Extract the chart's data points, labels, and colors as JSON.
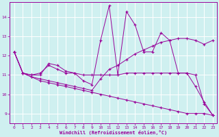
{
  "xlabel": "Windchill (Refroidissement éolien,°C)",
  "xlim": [
    -0.5,
    23.5
  ],
  "ylim": [
    8.5,
    14.8
  ],
  "yticks": [
    9,
    10,
    11,
    12,
    13,
    14
  ],
  "xticks": [
    0,
    1,
    2,
    3,
    4,
    5,
    6,
    7,
    8,
    9,
    10,
    11,
    12,
    13,
    14,
    15,
    16,
    17,
    18,
    19,
    20,
    21,
    22,
    23
  ],
  "bg_color": "#cff0f0",
  "line_color": "#990099",
  "grid_color": "#ffffff",
  "series": [
    [
      12.2,
      11.1,
      11.0,
      11.0,
      11.6,
      11.5,
      11.2,
      11.1,
      10.7,
      10.5,
      12.8,
      14.6,
      11.0,
      14.3,
      13.6,
      12.2,
      12.2,
      13.2,
      12.8,
      11.1,
      11.1,
      10.4,
      9.6,
      8.9
    ],
    [
      12.2,
      11.1,
      10.9,
      10.8,
      10.7,
      10.6,
      10.5,
      10.4,
      10.3,
      10.2,
      10.8,
      11.3,
      11.5,
      11.8,
      12.1,
      12.3,
      12.5,
      12.7,
      12.8,
      12.9,
      12.9,
      12.8,
      12.6,
      12.8
    ],
    [
      12.2,
      11.1,
      11.0,
      11.1,
      11.5,
      11.3,
      11.1,
      11.1,
      11.0,
      11.0,
      11.0,
      11.0,
      11.0,
      11.1,
      11.1,
      11.1,
      11.1,
      11.1,
      11.1,
      11.1,
      11.1,
      11.0,
      9.5,
      8.9
    ],
    [
      12.2,
      11.1,
      10.9,
      10.7,
      10.6,
      10.5,
      10.4,
      10.3,
      10.2,
      10.1,
      10.0,
      9.9,
      9.8,
      9.7,
      9.6,
      9.5,
      9.4,
      9.3,
      9.2,
      9.1,
      9.0,
      9.0,
      9.0,
      8.9
    ]
  ]
}
